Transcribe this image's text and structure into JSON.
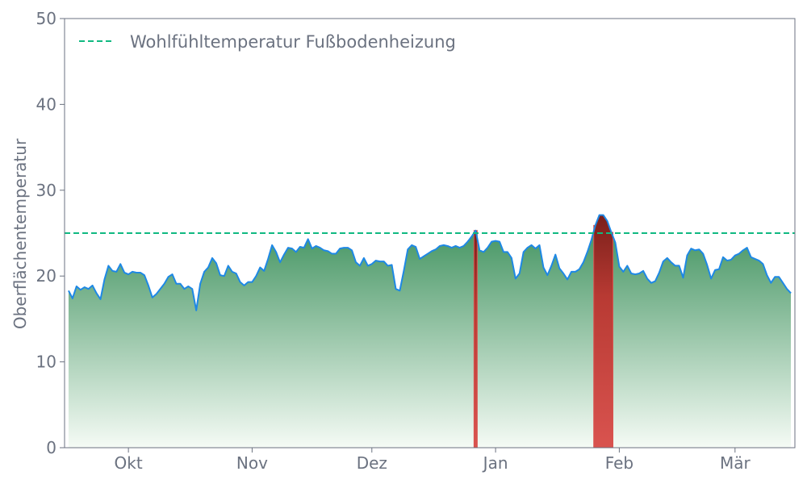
{
  "chart_data": {
    "type": "area",
    "title": "",
    "xlabel": "",
    "ylabel": "Oberflächentemperatur",
    "ylim": [
      0,
      50
    ],
    "yticks": [
      0,
      10,
      20,
      30,
      40,
      50
    ],
    "x_range": [
      "2023-09-15",
      "2024-03-16"
    ],
    "x_ticks": [
      {
        "date": "2023-10-01",
        "label": "Okt"
      },
      {
        "date": "2023-11-01",
        "label": "Nov"
      },
      {
        "date": "2023-12-01",
        "label": "Dez"
      },
      {
        "date": "2024-01-01",
        "label": "Jan"
      },
      {
        "date": "2024-02-01",
        "label": "Feb"
      },
      {
        "date": "2024-03-01",
        "label": "Mär"
      }
    ],
    "threshold": {
      "value": 25,
      "label": "Wohlfühltemperatur Fußbodenheizung",
      "color": "#10b981"
    },
    "grid": false,
    "legend_position": "top-left",
    "colors": {
      "line": "#1e88e5",
      "fill_top": "#3a8f5a",
      "fill_bottom": "#f5fbf5",
      "exceed": "#d9534f",
      "axis": "#6b7280"
    },
    "series": [
      {
        "dates": [
          "2023-09-16",
          "2023-09-17",
          "2023-09-18",
          "2023-09-19",
          "2023-09-20",
          "2023-09-21",
          "2023-09-22",
          "2023-09-23",
          "2023-09-24",
          "2023-09-25",
          "2023-09-26",
          "2023-09-27",
          "2023-09-28",
          "2023-09-29",
          "2023-09-30",
          "2023-10-01",
          "2023-10-02",
          "2023-10-03",
          "2023-10-04",
          "2023-10-05",
          "2023-10-06",
          "2023-10-07",
          "2023-10-08",
          "2023-10-09",
          "2023-10-10",
          "2023-10-11",
          "2023-10-12",
          "2023-10-13",
          "2023-10-14",
          "2023-10-15",
          "2023-10-16",
          "2023-10-17",
          "2023-10-18",
          "2023-10-19",
          "2023-10-20",
          "2023-10-21",
          "2023-10-22",
          "2023-10-23",
          "2023-10-24",
          "2023-10-25",
          "2023-10-26",
          "2023-10-27",
          "2023-10-28",
          "2023-10-29",
          "2023-10-30",
          "2023-10-31",
          "2023-11-01",
          "2023-11-02",
          "2023-11-03",
          "2023-11-04",
          "2023-11-05",
          "2023-11-06",
          "2023-11-07",
          "2023-11-08",
          "2023-11-09",
          "2023-11-10",
          "2023-11-11",
          "2023-11-12",
          "2023-11-13",
          "2023-11-14",
          "2023-11-15",
          "2023-11-16",
          "2023-11-17",
          "2023-11-18",
          "2023-11-19",
          "2023-11-20",
          "2023-11-21",
          "2023-11-22",
          "2023-11-23",
          "2023-11-24",
          "2023-11-25",
          "2023-11-26",
          "2023-11-27",
          "2023-11-28",
          "2023-11-29",
          "2023-11-30",
          "2023-12-01",
          "2023-12-02",
          "2023-12-03",
          "2023-12-04",
          "2023-12-05",
          "2023-12-06",
          "2023-12-07",
          "2023-12-08",
          "2023-12-09",
          "2023-12-10",
          "2023-12-11",
          "2023-12-12",
          "2023-12-13",
          "2023-12-14",
          "2023-12-15",
          "2023-12-16",
          "2023-12-17",
          "2023-12-18",
          "2023-12-19",
          "2023-12-20",
          "2023-12-21",
          "2023-12-22",
          "2023-12-23",
          "2023-12-24",
          "2023-12-25",
          "2023-12-26",
          "2023-12-27",
          "2023-12-28",
          "2023-12-29",
          "2023-12-30",
          "2023-12-31",
          "2024-01-01",
          "2024-01-02",
          "2024-01-03",
          "2024-01-04",
          "2024-01-05",
          "2024-01-06",
          "2024-01-07",
          "2024-01-08",
          "2024-01-09",
          "2024-01-10",
          "2024-01-11",
          "2024-01-12",
          "2024-01-13",
          "2024-01-14",
          "2024-01-15",
          "2024-01-16",
          "2024-01-17",
          "2024-01-18",
          "2024-01-19",
          "2024-01-20",
          "2024-01-21",
          "2024-01-22",
          "2024-01-23",
          "2024-01-24",
          "2024-01-25",
          "2024-01-26",
          "2024-01-27",
          "2024-01-28",
          "2024-01-29",
          "2024-01-30",
          "2024-01-31",
          "2024-02-01",
          "2024-02-02",
          "2024-02-03",
          "2024-02-04",
          "2024-02-05",
          "2024-02-06",
          "2024-02-07",
          "2024-02-08",
          "2024-02-09",
          "2024-02-10",
          "2024-02-11",
          "2024-02-12",
          "2024-02-13",
          "2024-02-14",
          "2024-02-15",
          "2024-02-16",
          "2024-02-17",
          "2024-02-18",
          "2024-02-19",
          "2024-02-20",
          "2024-02-21",
          "2024-02-22",
          "2024-02-23",
          "2024-02-24",
          "2024-02-25",
          "2024-02-26",
          "2024-02-27",
          "2024-02-28",
          "2024-02-29",
          "2024-03-01",
          "2024-03-02",
          "2024-03-03",
          "2024-03-04",
          "2024-03-05",
          "2024-03-06",
          "2024-03-07",
          "2024-03-08",
          "2024-03-09",
          "2024-03-10",
          "2024-03-11",
          "2024-03-12",
          "2024-03-13",
          "2024-03-14",
          "2024-03-15"
        ],
        "values": [
          18.3,
          17.4,
          18.8,
          18.4,
          18.7,
          18.5,
          18.9,
          18.0,
          17.3,
          19.6,
          21.2,
          20.6,
          20.5,
          21.4,
          20.4,
          20.2,
          20.5,
          20.4,
          20.4,
          20.1,
          18.9,
          17.5,
          17.9,
          18.5,
          19.1,
          19.9,
          20.2,
          19.1,
          19.1,
          18.5,
          18.8,
          18.5,
          16.0,
          19.1,
          20.5,
          21.0,
          22.1,
          21.5,
          20.1,
          20.0,
          21.2,
          20.5,
          20.3,
          19.3,
          18.9,
          19.3,
          19.3,
          20.0,
          21.0,
          20.6,
          22.0,
          23.6,
          22.8,
          21.6,
          22.5,
          23.3,
          23.2,
          22.8,
          23.4,
          23.3,
          24.3,
          23.2,
          23.5,
          23.3,
          23.0,
          22.9,
          22.6,
          22.6,
          23.2,
          23.3,
          23.3,
          23.0,
          21.6,
          21.2,
          22.1,
          21.2,
          21.4,
          21.8,
          21.7,
          21.7,
          21.2,
          21.3,
          18.5,
          18.3,
          20.6,
          23.1,
          23.6,
          23.4,
          22.0,
          22.3,
          22.6,
          22.9,
          23.1,
          23.5,
          23.6,
          23.5,
          23.3,
          23.5,
          23.3,
          23.5,
          24.0,
          24.6,
          25.3,
          23.0,
          22.8,
          23.3,
          24.0,
          24.1,
          24.0,
          22.8,
          22.8,
          22.1,
          19.7,
          20.3,
          22.8,
          23.3,
          23.6,
          23.2,
          23.6,
          21.0,
          20.1,
          21.2,
          22.5,
          20.9,
          20.3,
          19.6,
          20.5,
          20.5,
          20.8,
          21.6,
          22.8,
          24.2,
          25.9,
          27.1,
          27.1,
          26.4,
          25.1,
          23.9,
          21.1,
          20.5,
          21.2,
          20.3,
          20.2,
          20.3,
          20.6,
          19.7,
          19.2,
          19.4,
          20.4,
          21.7,
          22.1,
          21.6,
          21.2,
          21.2,
          19.8,
          22.4,
          23.2,
          23.0,
          23.1,
          22.6,
          21.3,
          19.7,
          20.7,
          20.8,
          22.2,
          21.8,
          21.9,
          22.4,
          22.6,
          23.0,
          23.3,
          22.2,
          22.0,
          21.8,
          21.4,
          20.1,
          19.2,
          19.9,
          19.9,
          19.2,
          18.5,
          18.0
        ]
      }
    ]
  }
}
